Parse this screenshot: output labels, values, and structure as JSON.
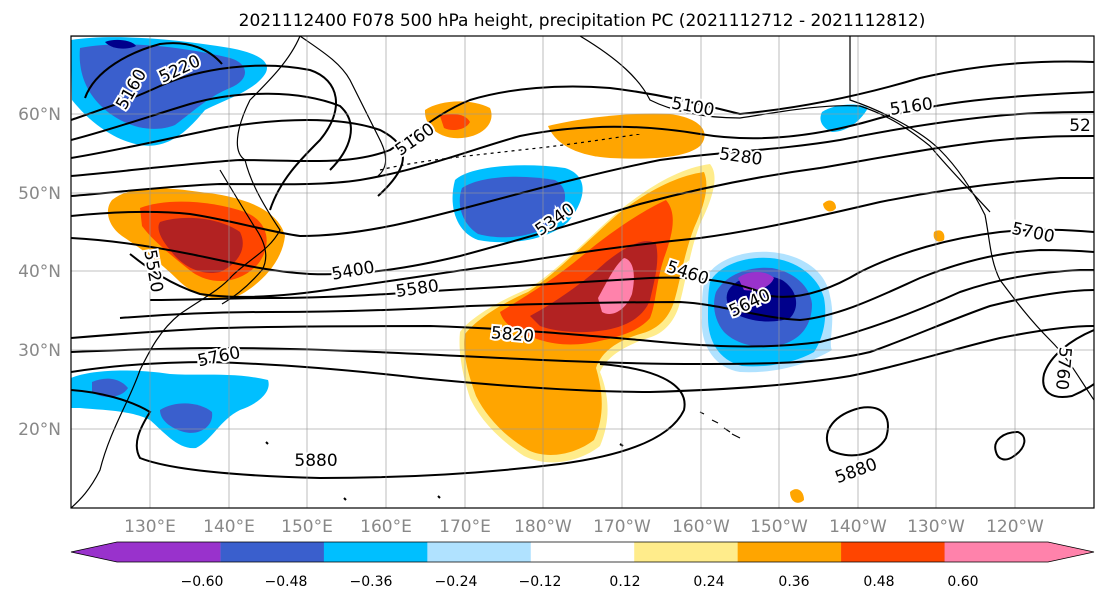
{
  "title": "2021112400 F078 500 hPa height, precipitation PC (2021112712 - 2021112812)",
  "map": {
    "lat_ticks": [
      "60°N",
      "50°N",
      "40°N",
      "30°N",
      "20°N"
    ],
    "lon_ticks": [
      "130°E",
      "140°E",
      "150°E",
      "160°E",
      "170°E",
      "180°W",
      "170°W",
      "160°W",
      "150°W",
      "140°W",
      "130°W",
      "120°W"
    ],
    "gridlines": true,
    "contour_labels": [
      "5160",
      "5220",
      "5160",
      "5100",
      "5160",
      "52",
      "5280",
      "5340",
      "5400",
      "5460",
      "5520",
      "5580",
      "5640",
      "5700",
      "5760",
      "5820",
      "5880",
      "5880",
      "5760"
    ]
  },
  "colorbar": {
    "tick_labels": [
      "−0.60",
      "−0.48",
      "−0.36",
      "−0.24",
      "−0.12",
      "0.12",
      "0.24",
      "0.36",
      "0.48",
      "0.60"
    ],
    "colors": [
      "#9932cc",
      "#00008b",
      "#3a5fcd",
      "#00bfff",
      "#b0e2ff",
      "#ffffff",
      "#ffec8b",
      "#ffa500",
      "#ff4500",
      "#b22222",
      "#ff82ab"
    ]
  },
  "colors": {
    "grid": "#999999",
    "axis_text": "#888888",
    "contour": "#000000"
  }
}
